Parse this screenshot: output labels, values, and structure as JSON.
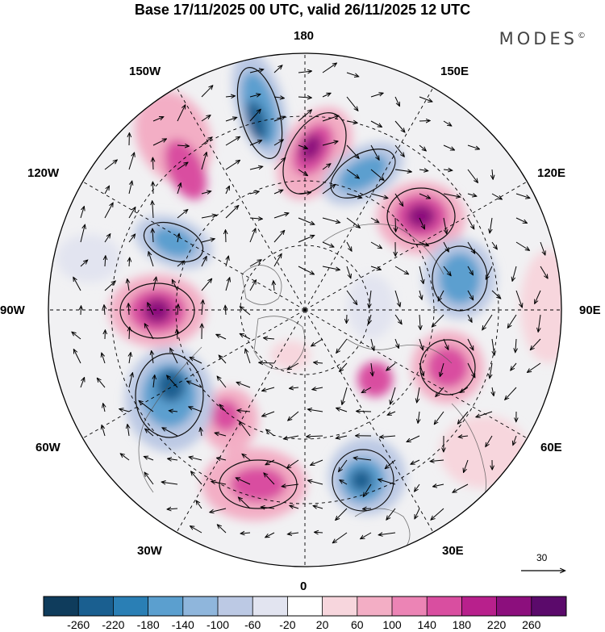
{
  "title": "Base 17/11/2025 00 UTC, valid 26/11/2025 12 UTC",
  "brand": "MODES",
  "brand_mark": "©",
  "longitude_labels": {
    "lon_180": "180",
    "lon_150e": "150E",
    "lon_120e": "120E",
    "lon_90e": "90E",
    "lon_60e": "60E",
    "lon_30e": "30E",
    "lon_0": "0",
    "lon_30w": "30W",
    "lon_60w": "60W",
    "lon_90w": "90W",
    "lon_120w": "120W",
    "lon_150w": "150W"
  },
  "reference_vector_label": "30",
  "colorbar": {
    "colors": [
      "#0f3c5c",
      "#1a5f90",
      "#2a7fb5",
      "#5b9fcf",
      "#8fb6dc",
      "#bcc9e4",
      "#e2e4f0",
      "#ffffff",
      "#f7d6dd",
      "#f3aec5",
      "#ec84b5",
      "#d94ea0",
      "#b8208c",
      "#8c0f7d",
      "#5b0a6b"
    ],
    "tick_labels": [
      "-260",
      "-220",
      "-180",
      "-140",
      "-100",
      "-60",
      "-20",
      "20",
      "60",
      "100",
      "140",
      "180",
      "220",
      "260"
    ]
  },
  "anomaly_colors": {
    "strong_pos": "#8c0f7d",
    "pos": "#d94ea0",
    "weak_pos": "#f3aec5",
    "faint_pos": "#f7d6dd",
    "strong_neg": "#1a5f90",
    "neg": "#5b9fcf",
    "weak_neg": "#bcc9e4",
    "faint_neg": "#e2e4f0"
  }
}
